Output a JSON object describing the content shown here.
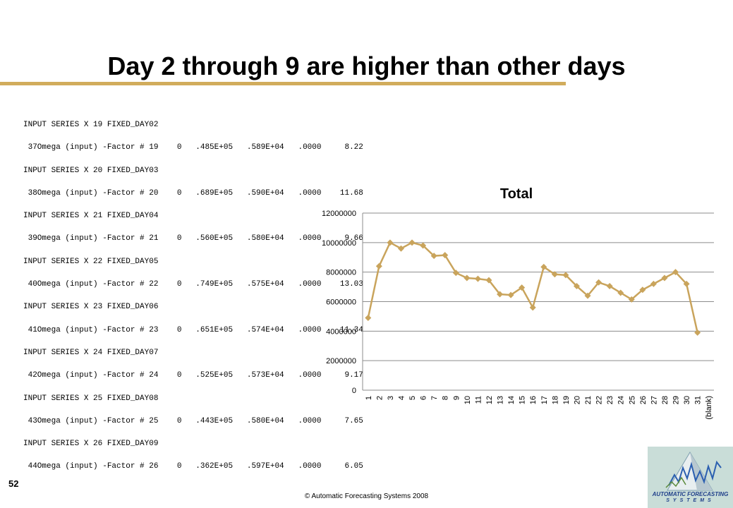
{
  "slide": {
    "title": "Day 2 through 9 are higher than other days",
    "page_number": "52",
    "copyright": "© Automatic Forecasting Systems 2008",
    "accent_color": "#d1ac5c"
  },
  "output_lines": [
    "INPUT SERIES X 19 FIXED_DAY02",
    " 37Omega (input) -Factor # 19    0   .485E+05   .589E+04   .0000     8.22",
    "INPUT SERIES X 20 FIXED_DAY03",
    " 38Omega (input) -Factor # 20    0   .689E+05   .590E+04   .0000    11.68",
    "INPUT SERIES X 21 FIXED_DAY04",
    " 39Omega (input) -Factor # 21    0   .560E+05   .580E+04   .0000     9.66",
    "INPUT SERIES X 22 FIXED_DAY05",
    " 40Omega (input) -Factor # 22    0   .749E+05   .575E+04   .0000    13.03",
    "INPUT SERIES X 23 FIXED_DAY06",
    " 41Omega (input) -Factor # 23    0   .651E+05   .574E+04   .0000    11.34",
    "INPUT SERIES X 24 FIXED_DAY07",
    " 42Omega (input) -Factor # 24    0   .525E+05   .573E+04   .0000     9.17",
    "INPUT SERIES X 25 FIXED_DAY08",
    " 43Omega (input) -Factor # 25    0   .443E+05   .580E+04   .0000     7.65",
    "INPUT SERIES X 26 FIXED_DAY09",
    " 44Omega (input) -Factor # 26    0   .362E+05   .597E+04   .0000     6.05"
  ],
  "logo": {
    "name": "AUTOMATIC FORECASTING",
    "sub": "SYSTEMS"
  },
  "chart_data": {
    "type": "line",
    "title": "Total",
    "categories": [
      "1",
      "2",
      "3",
      "4",
      "5",
      "6",
      "7",
      "8",
      "9",
      "10",
      "11",
      "12",
      "13",
      "14",
      "15",
      "16",
      "17",
      "18",
      "19",
      "20",
      "21",
      "22",
      "23",
      "24",
      "25",
      "26",
      "27",
      "28",
      "29",
      "30",
      "31",
      "(blank)"
    ],
    "series": [
      {
        "values": [
          4900000,
          8400000,
          10000000,
          9600000,
          10000000,
          9800000,
          9100000,
          9150000,
          7950000,
          7600000,
          7550000,
          7450000,
          6500000,
          6450000,
          6950000,
          5600000,
          8350000,
          7850000,
          7800000,
          7050000,
          6400000,
          7300000,
          7050000,
          6600000,
          6150000,
          6800000,
          7200000,
          7600000,
          8000000,
          7200000,
          3900000,
          null
        ],
        "color": "#c9a45c"
      }
    ],
    "yticks": [
      "0",
      "2000000",
      "4000000",
      "6000000",
      "8000000",
      "10000000",
      "12000000"
    ],
    "ylim": [
      0,
      12000000
    ],
    "grid": true,
    "legend": "none"
  }
}
